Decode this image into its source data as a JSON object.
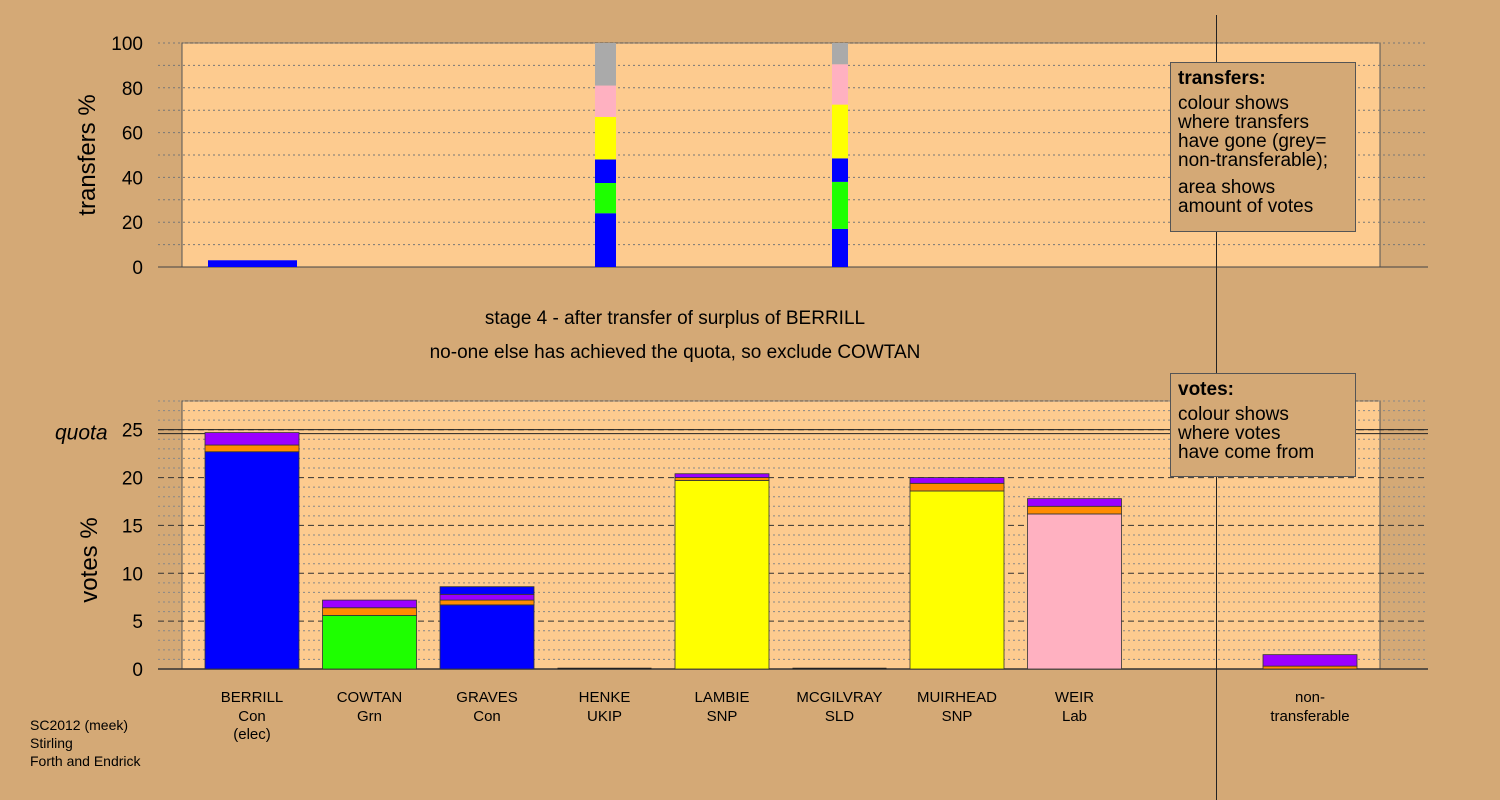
{
  "colors": {
    "background": "#d4a976",
    "plot_bg": "#fdcb8f",
    "Con": "#0000ff",
    "Grn": "#1eff00",
    "SNP": "#ffff00",
    "Lab": "#ffb1c1",
    "transfer_1": "#ff8c00",
    "transfer_2": "#9b00ff",
    "nontransferable": "#aaaaaa"
  },
  "stage_lines": [
    "stage 4 - after transfer of surplus of BERRILL",
    "no-one else has achieved the quota, so exclude COWTAN"
  ],
  "legend_transfers": {
    "title": "transfers:",
    "lines": [
      "colour shows",
      "where transfers",
      "have gone (grey=",
      "non-transferable);"
    ],
    "lines2": [
      "area shows",
      "amount of votes"
    ]
  },
  "legend_votes": {
    "title": "votes:",
    "lines": [
      "colour shows",
      "where votes",
      "have come from"
    ]
  },
  "footer": [
    "SC2012 (meek)",
    "Stirling",
    "Forth and Endrick"
  ],
  "chart_data": [
    {
      "type": "bar",
      "ylabel": "transfers %",
      "ylim": [
        0,
        100
      ],
      "yticks": [
        0,
        20,
        40,
        60,
        80,
        100
      ],
      "grid": true,
      "columns": [
        {
          "segments": [
            {
              "party": "Con",
              "value": 3
            }
          ]
        },
        {
          "segments": [
            {
              "party": "Con",
              "value": 24
            },
            {
              "party": "Grn",
              "value": 13.5
            },
            {
              "party": "Con",
              "value": 10.5
            },
            {
              "party": "SNP",
              "value": 19
            },
            {
              "party": "Lab",
              "value": 14
            },
            {
              "party": "nontransferable",
              "value": 19
            }
          ]
        },
        {
          "segments": [
            {
              "party": "Con",
              "value": 17
            },
            {
              "party": "Grn",
              "value": 21
            },
            {
              "party": "Con",
              "value": 10.5
            },
            {
              "party": "SNP",
              "value": 24
            },
            {
              "party": "Lab",
              "value": 18
            },
            {
              "party": "nontransferable",
              "value": 9.5
            }
          ]
        }
      ]
    },
    {
      "type": "bar",
      "ylabel": "votes %",
      "ylim": [
        0,
        28
      ],
      "yticks": [
        0,
        5,
        10,
        15,
        20,
        25
      ],
      "quota": 24.8,
      "quota_label": "quota",
      "grid": true,
      "categories": [
        {
          "name": "BERRILL",
          "party": "Con",
          "note": "(elec)"
        },
        {
          "name": "COWTAN",
          "party": "Grn",
          "note": ""
        },
        {
          "name": "GRAVES",
          "party": "Con",
          "note": ""
        },
        {
          "name": "HENKE",
          "party": "UKIP",
          "note": ""
        },
        {
          "name": "LAMBIE",
          "party": "SNP",
          "note": ""
        },
        {
          "name": "MCGILVRAY",
          "party": "SLD",
          "note": ""
        },
        {
          "name": "MUIRHEAD",
          "party": "SNP",
          "note": ""
        },
        {
          "name": "WEIR",
          "party": "Lab",
          "note": ""
        }
      ],
      "nontransferable_label": [
        "non-",
        "transferable"
      ],
      "bars": [
        {
          "base": 22.7,
          "t1": 0.7,
          "t2": 1.3,
          "color": "Con"
        },
        {
          "base": 5.6,
          "t1": 0.8,
          "t2": 0.8,
          "color": "Grn"
        },
        {
          "base": 6.7,
          "t1": 0.5,
          "t2": 0.6,
          "extra_con": 0.8,
          "color": "Con"
        },
        {
          "base": 0,
          "t1": 0,
          "t2": 0,
          "color": "Con"
        },
        {
          "base": 19.7,
          "t1": 0.3,
          "t2": 0.4,
          "color": "SNP"
        },
        {
          "base": 0,
          "t1": 0,
          "t2": 0,
          "color": "SNP"
        },
        {
          "base": 18.6,
          "t1": 0.8,
          "t2": 0.6,
          "color": "SNP"
        },
        {
          "base": 16.2,
          "t1": 0.8,
          "t2": 0.8,
          "color": "Lab"
        }
      ],
      "nontransferable": {
        "t1": 0.3,
        "t2": 1.2
      }
    }
  ]
}
